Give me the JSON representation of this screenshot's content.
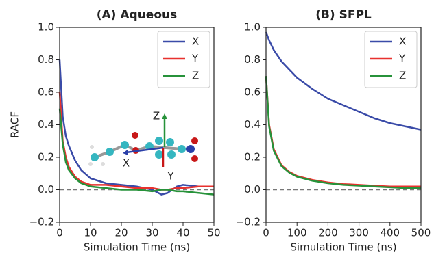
{
  "chart_data": [
    {
      "type": "line",
      "title": "(A) Aqueous",
      "xlabel": "Simulation Time (ns)",
      "ylabel": "RACF",
      "x": [
        0,
        1,
        2,
        3,
        5,
        7,
        10,
        15,
        20,
        25,
        30,
        33,
        35,
        38,
        40,
        45,
        50
      ],
      "series": [
        {
          "name": "X",
          "color": "#3a4ba8",
          "values": [
            0.8,
            0.45,
            0.33,
            0.27,
            0.18,
            0.12,
            0.07,
            0.04,
            0.03,
            0.02,
            0.0,
            -0.03,
            -0.02,
            0.02,
            0.03,
            0.02,
            0.02
          ]
        },
        {
          "name": "Y",
          "color": "#e8312e",
          "values": [
            0.6,
            0.3,
            0.2,
            0.14,
            0.08,
            0.05,
            0.03,
            0.03,
            0.02,
            0.01,
            0.01,
            0.0,
            0.0,
            0.01,
            0.01,
            0.02,
            0.02
          ]
        },
        {
          "name": "Z",
          "color": "#27923a",
          "values": [
            0.5,
            0.28,
            0.17,
            0.12,
            0.07,
            0.04,
            0.02,
            0.01,
            0.0,
            0.0,
            -0.01,
            0.0,
            0.0,
            -0.01,
            -0.01,
            -0.02,
            -0.03
          ]
        }
      ],
      "xlim": [
        0,
        50
      ],
      "xticks": [
        0,
        10,
        20,
        30,
        40,
        50
      ],
      "ylim": [
        -0.2,
        1.0
      ],
      "yticks": [
        {
          "value": -0.2,
          "label": "−0.2"
        },
        {
          "value": 0,
          "label": "0.0"
        },
        {
          "value": 0.2,
          "label": "0.2"
        },
        {
          "value": 0.4,
          "label": "0.4"
        },
        {
          "value": 0.6,
          "label": "0.6"
        },
        {
          "value": 0.8,
          "label": "0.8"
        },
        {
          "value": 1.0,
          "label": "1.0"
        }
      ],
      "hlines": [
        0
      ],
      "legend": "upper right",
      "annotations": [
        "Z",
        "X",
        "Y"
      ]
    },
    {
      "type": "line",
      "title": "(B) SFPL",
      "xlabel": "Simulation Time (ns)",
      "x": [
        0,
        10,
        25,
        50,
        75,
        100,
        150,
        200,
        250,
        300,
        350,
        400,
        450,
        500
      ],
      "series": [
        {
          "name": "X",
          "color": "#3a4ba8",
          "values": [
            0.97,
            0.92,
            0.86,
            0.79,
            0.74,
            0.69,
            0.62,
            0.56,
            0.52,
            0.48,
            0.44,
            0.41,
            0.39,
            0.37
          ]
        },
        {
          "name": "Y",
          "color": "#e8312e",
          "values": [
            0.7,
            0.4,
            0.25,
            0.15,
            0.11,
            0.085,
            0.06,
            0.045,
            0.035,
            0.03,
            0.025,
            0.02,
            0.02,
            0.02
          ]
        },
        {
          "name": "Z",
          "color": "#27923a",
          "values": [
            0.7,
            0.39,
            0.24,
            0.145,
            0.105,
            0.08,
            0.055,
            0.04,
            0.03,
            0.025,
            0.02,
            0.015,
            0.01,
            0.01
          ]
        }
      ],
      "xlim": [
        0,
        500
      ],
      "xticks": [
        0,
        100,
        200,
        300,
        400,
        500
      ],
      "ylim": [
        -0.2,
        1.0
      ],
      "yticks": [
        {
          "value": -0.2,
          "label": "−0.2"
        },
        {
          "value": 0,
          "label": "0.0"
        },
        {
          "value": 0.2,
          "label": "0.2"
        },
        {
          "value": 0.4,
          "label": "0.4"
        },
        {
          "value": 0.6,
          "label": "0.6"
        },
        {
          "value": 0.8,
          "label": "0.8"
        },
        {
          "value": 1.0,
          "label": "1.0"
        }
      ],
      "hlines": [
        0
      ],
      "legend": "upper right"
    }
  ]
}
